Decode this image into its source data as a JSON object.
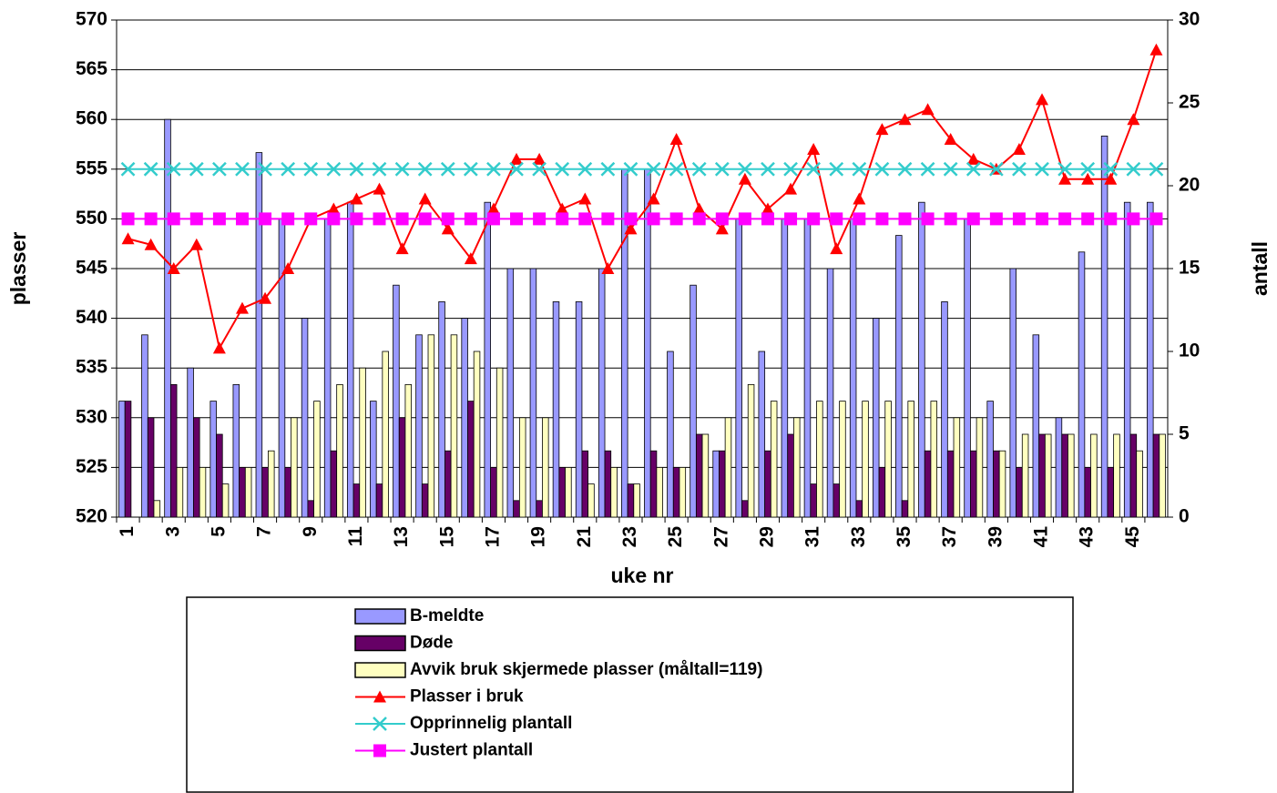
{
  "chart_data": {
    "type": "bar_line",
    "x_label": "uke nr",
    "y_label": "plasser",
    "y2_label": "antall",
    "categories": [
      "1",
      null,
      "3",
      null,
      "5",
      null,
      "7",
      null,
      "9",
      null,
      "11",
      null,
      "13",
      null,
      "15",
      null,
      "17",
      null,
      "19",
      null,
      "21",
      null,
      "23",
      null,
      "25",
      null,
      "27",
      null,
      "29",
      null,
      "31",
      null,
      "33",
      null,
      "35",
      null,
      "37",
      null,
      "39",
      null,
      "41",
      null,
      "43",
      null,
      "45",
      null
    ],
    "ylim": [
      520,
      570
    ],
    "yticks": [
      520,
      525,
      530,
      535,
      540,
      545,
      550,
      555,
      560,
      565,
      570
    ],
    "y2lim": [
      0,
      30
    ],
    "y2ticks": [
      0,
      5,
      10,
      15,
      20,
      25,
      30
    ],
    "series": [
      {
        "name": "B-meldte",
        "type": "bar",
        "axis": "y2",
        "color": "#9999ff",
        "values": [
          7,
          11,
          24,
          9,
          7,
          8,
          22,
          18,
          12,
          18,
          19,
          7,
          14,
          11,
          13,
          12,
          19,
          15,
          15,
          13,
          13,
          15,
          21,
          21,
          10,
          14,
          4,
          18,
          10,
          18,
          18,
          15,
          18,
          12,
          17,
          19,
          13,
          18,
          7,
          15,
          11,
          6,
          16,
          23,
          19,
          19
        ]
      },
      {
        "name": "Døde",
        "type": "bar",
        "axis": "y2",
        "color": "#660066",
        "values": [
          7,
          6,
          8,
          6,
          5,
          3,
          3,
          3,
          1,
          4,
          2,
          2,
          6,
          2,
          4,
          7,
          3,
          1,
          1,
          3,
          4,
          4,
          2,
          4,
          3,
          5,
          4,
          1,
          4,
          5,
          2,
          2,
          1,
          3,
          1,
          4,
          4,
          4,
          4,
          3,
          5,
          5,
          3,
          3,
          5,
          5
        ]
      },
      {
        "name": "Avvik bruk skjermede plasser (måltall=119)",
        "type": "bar",
        "axis": "y2",
        "color": "#ffffc0",
        "values": [
          0,
          1,
          3,
          3,
          2,
          3,
          4,
          6,
          7,
          8,
          9,
          10,
          8,
          11,
          11,
          10,
          9,
          6,
          6,
          3,
          2,
          3,
          2,
          3,
          3,
          5,
          6,
          8,
          7,
          6,
          7,
          7,
          7,
          7,
          7,
          7,
          6,
          6,
          4,
          5,
          5,
          5,
          5,
          5,
          4,
          5
        ]
      },
      {
        "name": "Plasser i bruk",
        "type": "line",
        "marker": "triangle",
        "color": "#ff0000",
        "values": [
          548,
          547.4,
          545,
          547.4,
          537,
          541,
          542,
          545,
          550,
          551,
          552,
          553,
          547,
          552,
          549,
          546,
          551,
          556,
          556,
          551,
          552,
          545,
          549,
          552,
          558,
          551,
          549,
          554,
          551,
          553,
          557,
          547,
          552,
          559,
          560,
          561,
          558,
          556,
          555,
          557,
          562,
          554,
          554,
          554,
          560,
          567
        ]
      },
      {
        "name": "Opprinnelig plantall",
        "type": "line",
        "marker": "x",
        "color": "#33cccc",
        "values": [
          555,
          555,
          555,
          555,
          555,
          555,
          555,
          555,
          555,
          555,
          555,
          555,
          555,
          555,
          555,
          555,
          555,
          555,
          555,
          555,
          555,
          555,
          555,
          555,
          555,
          555,
          555,
          555,
          555,
          555,
          555,
          555,
          555,
          555,
          555,
          555,
          555,
          555,
          555,
          555,
          555,
          555,
          555,
          555,
          555,
          555
        ]
      },
      {
        "name": "Justert plantall",
        "type": "line",
        "marker": "square",
        "color": "#ff00ff",
        "values": [
          550,
          550,
          550,
          550,
          550,
          550,
          550,
          550,
          550,
          550,
          550,
          550,
          550,
          550,
          550,
          550,
          550,
          550,
          550,
          550,
          550,
          550,
          550,
          550,
          550,
          550,
          550,
          550,
          550,
          550,
          550,
          550,
          550,
          550,
          550,
          550,
          550,
          550,
          550,
          550,
          550,
          550,
          550,
          550,
          550,
          550
        ]
      }
    ]
  }
}
